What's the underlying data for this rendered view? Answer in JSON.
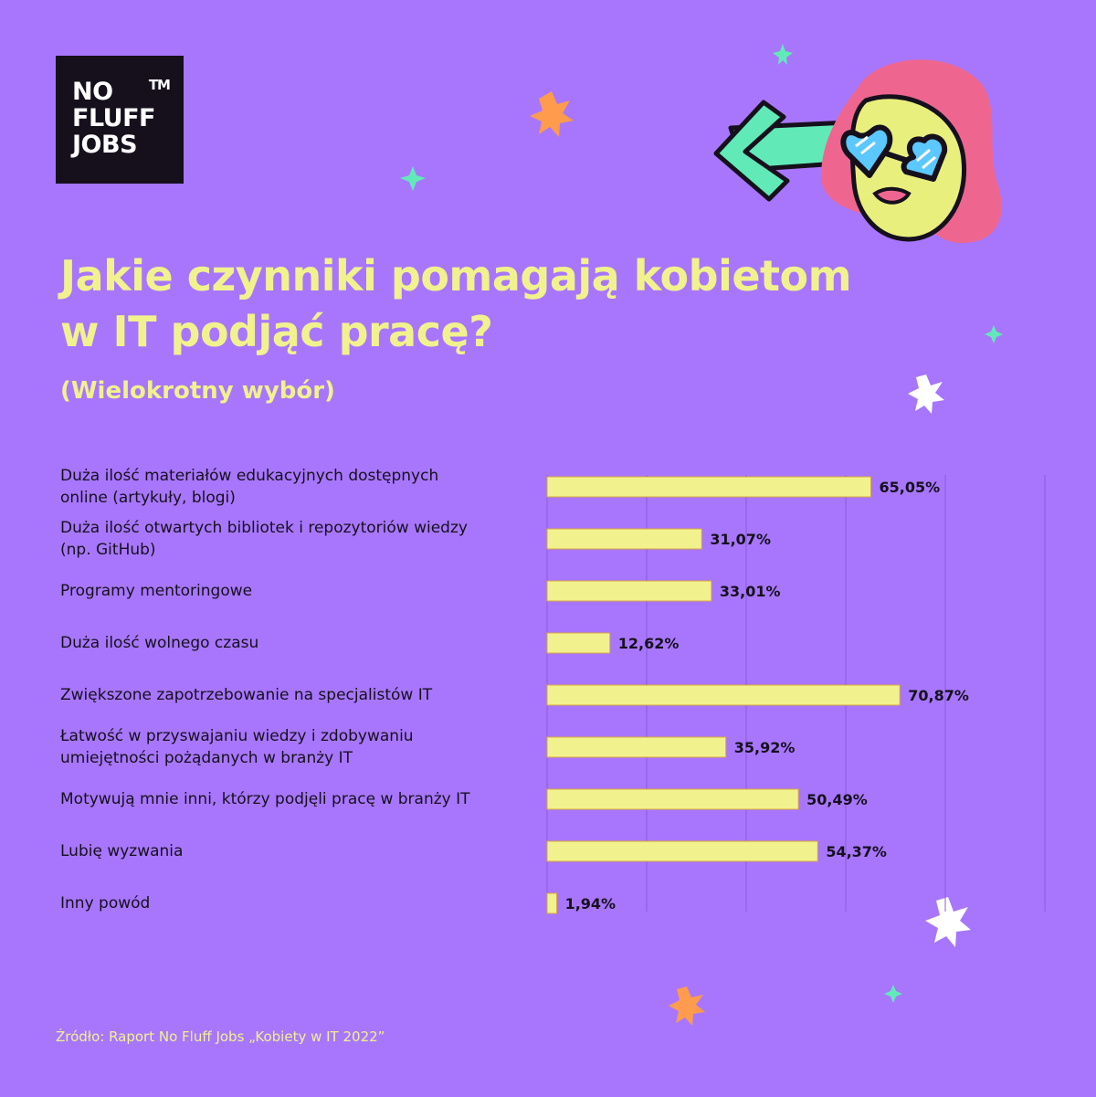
{
  "brand": {
    "logo_lines": [
      "NO",
      "FLUFF",
      "JOBS"
    ],
    "trademark": "TM"
  },
  "colors": {
    "background": "#a876fd",
    "bar": "#f1f28d",
    "bar_border": "#d7a53f",
    "text_dark": "#15101c",
    "title": "#f1f28d",
    "gridline": "#8c5ad6"
  },
  "chart_data": {
    "type": "bar",
    "orientation": "horizontal",
    "title": "Jakie czynniki pomagają kobietom w IT podjąć pracę?",
    "subtitle": "(Wielokrotny wybór)",
    "categories": [
      "Duża ilość materiałów edukacyjnych dostępnych online (artykuły, blogi)",
      "Duża ilość otwartych bibliotek i repozytoriów wiedzy (np. GitHub)",
      "Programy mentoringowe",
      "Duża ilość wolnego czasu",
      "Zwiększone zapotrzebowanie na specjalistów IT",
      "Łatwość w przyswajaniu wiedzy i zdobywaniu umiejętności pożądanych w branży IT",
      "Motywują mnie inni, którzy podjęli pracę w branży IT",
      "Lubię wyzwania",
      "Inny powód"
    ],
    "category_lines": [
      [
        "Duża ilość materiałów edukacyjnych dostępnych",
        "online (artykuły, blogi)"
      ],
      [
        "Duża ilość otwartych bibliotek i repozytoriów wiedzy",
        "(np. GitHub)"
      ],
      [
        "Programy mentoringowe"
      ],
      [
        "Duża ilość wolnego czasu"
      ],
      [
        "Zwiększone zapotrzebowanie na specjalistów IT"
      ],
      [
        "Łatwość w przyswajaniu wiedzy i zdobywaniu",
        "umiejętności pożądanych w branży IT"
      ],
      [
        "Motywują mnie inni, którzy podjęli pracę w branży IT"
      ],
      [
        "Lubię wyzwania"
      ],
      [
        "Inny powód"
      ]
    ],
    "values": [
      65.05,
      31.07,
      33.01,
      12.62,
      70.87,
      35.92,
      50.49,
      54.37,
      1.94
    ],
    "value_labels": [
      "65,05%",
      "31,07%",
      "33,01%",
      "12,62%",
      "70,87%",
      "35,92%",
      "50,49%",
      "54,37%",
      "1,94%"
    ],
    "xlim": [
      0,
      100
    ],
    "grid": true,
    "legend": "none"
  },
  "source": "Źródło: Raport No Fluff Jobs „Kobiety w IT 2022”"
}
